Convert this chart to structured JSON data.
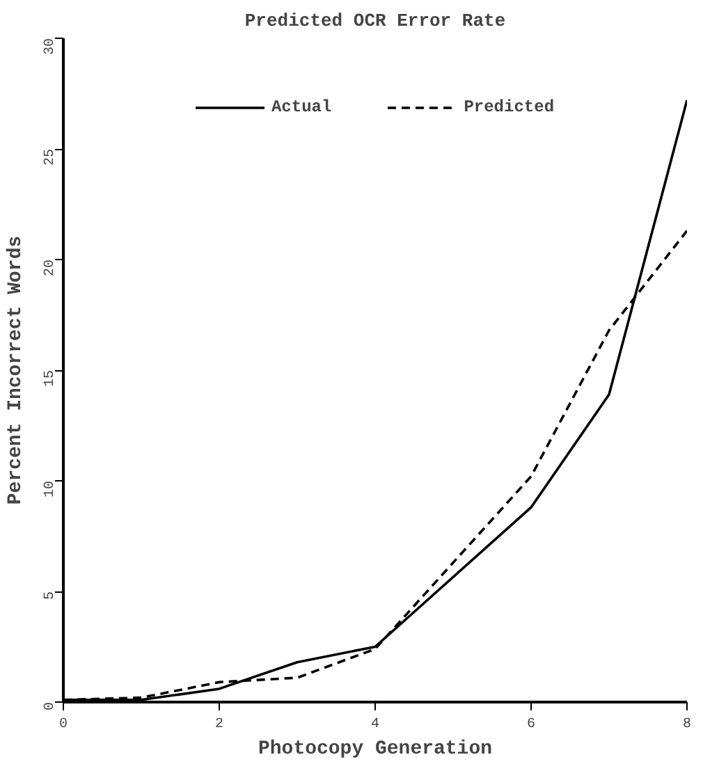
{
  "chart_data": {
    "type": "line",
    "title": "Predicted OCR Error Rate",
    "xlabel": "Photocopy Generation",
    "ylabel": "Percent Incorrect Words",
    "xlim": [
      0,
      8
    ],
    "xticks": [
      0,
      2,
      4,
      6,
      8
    ],
    "ylim": [
      0,
      30
    ],
    "yticks": [
      0,
      5,
      10,
      15,
      20,
      25,
      30
    ],
    "grid": false,
    "legend": "top",
    "marker": "none",
    "series": [
      {
        "name": "Actual",
        "color": "#000000",
        "line_style": "solid",
        "x": [
          0,
          1,
          2,
          3,
          4,
          6,
          7,
          8
        ],
        "values": [
          0.1,
          0.1,
          0.6,
          1.8,
          2.5,
          8.8,
          13.9,
          27.2
        ]
      },
      {
        "name": "Predicted",
        "color": "#000000",
        "line_style": "dashed",
        "x": [
          0,
          1,
          2,
          3,
          4,
          6,
          7,
          8
        ],
        "values": [
          0.1,
          0.2,
          0.9,
          1.1,
          2.4,
          10.2,
          16.8,
          21.3
        ]
      }
    ]
  }
}
